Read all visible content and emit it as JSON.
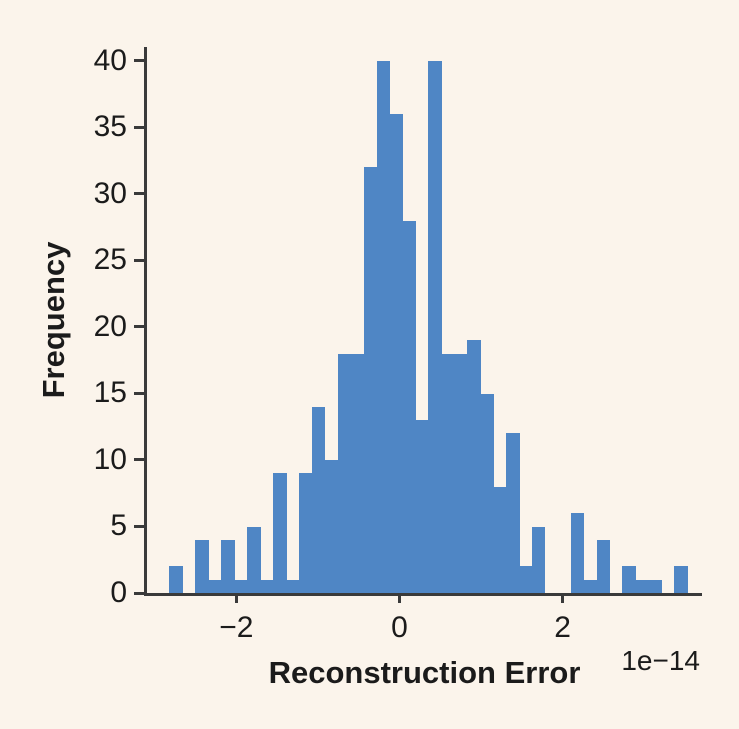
{
  "figure": {
    "background": "#FBF4EB",
    "bar_color": "#4F86C5",
    "axis_color": "#3A3A3A",
    "text_color": "#1B1B1B"
  },
  "chart_data": {
    "type": "bar",
    "subtype": "histogram",
    "title": "",
    "xlabel": "Reconstruction Error",
    "ylabel": "Frequency",
    "x_offset_label": "1e−14",
    "x_unit_scale": "1e-14",
    "bin_start": -2.82,
    "bin_width": 0.1587,
    "values": [
      2,
      0,
      4,
      1,
      4,
      1,
      5,
      1,
      9,
      1,
      9,
      14,
      10,
      18,
      18,
      32,
      40,
      36,
      28,
      13,
      40,
      18,
      18,
      19,
      15,
      8,
      12,
      2,
      5,
      0,
      0,
      6,
      1,
      4,
      0,
      2,
      1,
      1,
      0,
      2
    ],
    "total_count": 400,
    "xlim": [
      -3.095,
      3.71
    ],
    "ylim": [
      0,
      41.05
    ],
    "xticks": [
      {
        "value": -2,
        "label": "−2"
      },
      {
        "value": 0,
        "label": "0"
      },
      {
        "value": 2,
        "label": "2"
      }
    ],
    "yticks": [
      {
        "value": 0,
        "label": "0"
      },
      {
        "value": 5,
        "label": "5"
      },
      {
        "value": 10,
        "label": "10"
      },
      {
        "value": 15,
        "label": "15"
      },
      {
        "value": 20,
        "label": "20"
      },
      {
        "value": 25,
        "label": "25"
      },
      {
        "value": 30,
        "label": "30"
      },
      {
        "value": 35,
        "label": "35"
      },
      {
        "value": 40,
        "label": "40"
      }
    ],
    "grid": false,
    "legend": null
  }
}
